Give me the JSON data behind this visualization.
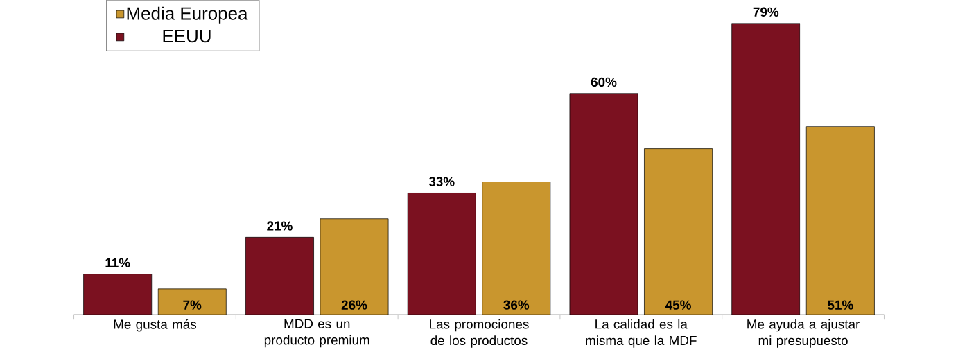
{
  "chart_data": {
    "type": "bar",
    "categories": [
      "Me gusta más",
      "MDD es un producto premium",
      "Las promociones de los productos",
      "La calidad es la misma que la MDF",
      "Me ayuda a ajustar mi presupuesto"
    ],
    "series": [
      {
        "name": "EEUU",
        "color": "#7b1120",
        "values": [
          11,
          21,
          33,
          60,
          79
        ],
        "value_labels": [
          "11%",
          "21%",
          "33%",
          "60%",
          "79%"
        ]
      },
      {
        "name": "Media Europea",
        "color": "#c9962e",
        "values": [
          7,
          26,
          36,
          45,
          51
        ],
        "value_labels": [
          "7%",
          "26%",
          "36%",
          "45%",
          "51%"
        ]
      }
    ],
    "legend": "top left",
    "grid": false
  }
}
